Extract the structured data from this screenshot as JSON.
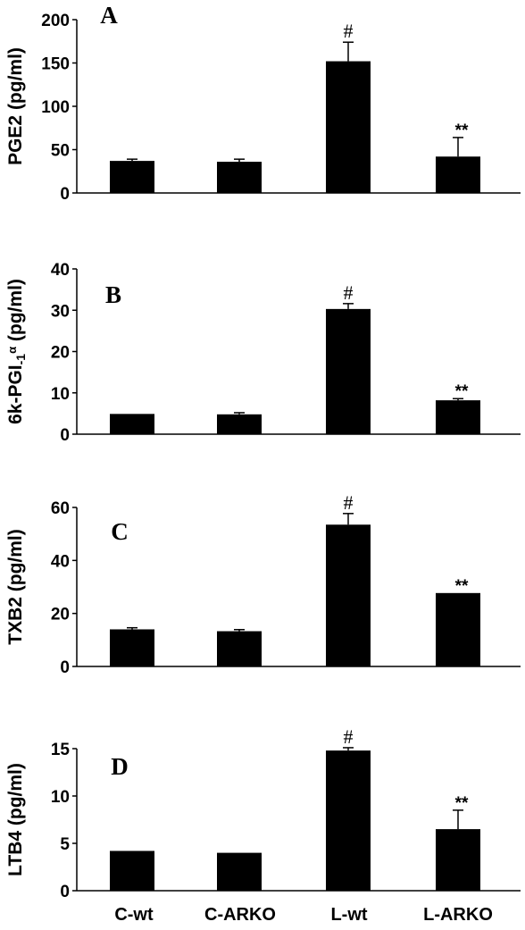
{
  "chart_data": [
    {
      "type": "bar",
      "panel_label": "A",
      "ylabel": "PGE2  (pg/ml)",
      "categories": [
        "C-wt",
        "C-ARKO",
        "L-wt",
        "L-ARKO"
      ],
      "values": [
        37,
        36,
        152,
        42
      ],
      "errors": [
        2,
        3,
        22,
        22
      ],
      "annotations": [
        "",
        "",
        "#",
        "**"
      ],
      "ylim": [
        0,
        200
      ],
      "yticks": [
        0,
        50,
        100,
        150,
        200
      ],
      "color": "#000000"
    },
    {
      "type": "bar",
      "panel_label": "B",
      "ylabel_main": "6k-PGI",
      "ylabel_sub": "-1",
      "ylabel_sup": "α",
      "ylabel_unit": "(pg/ml)",
      "categories": [
        "C-wt",
        "C-ARKO",
        "L-wt",
        "L-ARKO"
      ],
      "values": [
        4.9,
        4.8,
        30.3,
        8.2
      ],
      "errors": [
        0,
        0.4,
        1.3,
        0.4
      ],
      "annotations": [
        "",
        "",
        "#",
        "**"
      ],
      "ylim": [
        0,
        40
      ],
      "yticks": [
        0,
        10,
        20,
        30,
        40
      ],
      "color": "#000000"
    },
    {
      "type": "bar",
      "panel_label": "C",
      "ylabel": "TXB2  (pg/ml)",
      "categories": [
        "C-wt",
        "C-ARKO",
        "L-wt",
        "L-ARKO"
      ],
      "values": [
        14,
        13.3,
        53.5,
        27.7
      ],
      "errors": [
        0.6,
        0.6,
        4.2,
        0
      ],
      "annotations": [
        "",
        "",
        "#",
        "**"
      ],
      "ylim": [
        0,
        60
      ],
      "yticks": [
        0,
        20,
        40,
        60
      ],
      "color": "#000000"
    },
    {
      "type": "bar",
      "panel_label": "D",
      "ylabel": "LTB4  (pg/ml)",
      "categories": [
        "C-wt",
        "C-ARKO",
        "L-wt",
        "L-ARKO"
      ],
      "values": [
        4.2,
        4.0,
        14.8,
        6.5
      ],
      "errors": [
        0,
        0,
        0.3,
        2.0
      ],
      "annotations": [
        "",
        "",
        "#",
        "**"
      ],
      "ylim": [
        0,
        15
      ],
      "yticks": [
        0,
        5,
        10,
        15
      ],
      "color": "#000000"
    }
  ],
  "x_categories": [
    "C-wt",
    "C-ARKO",
    "L-wt",
    "L-ARKO"
  ]
}
